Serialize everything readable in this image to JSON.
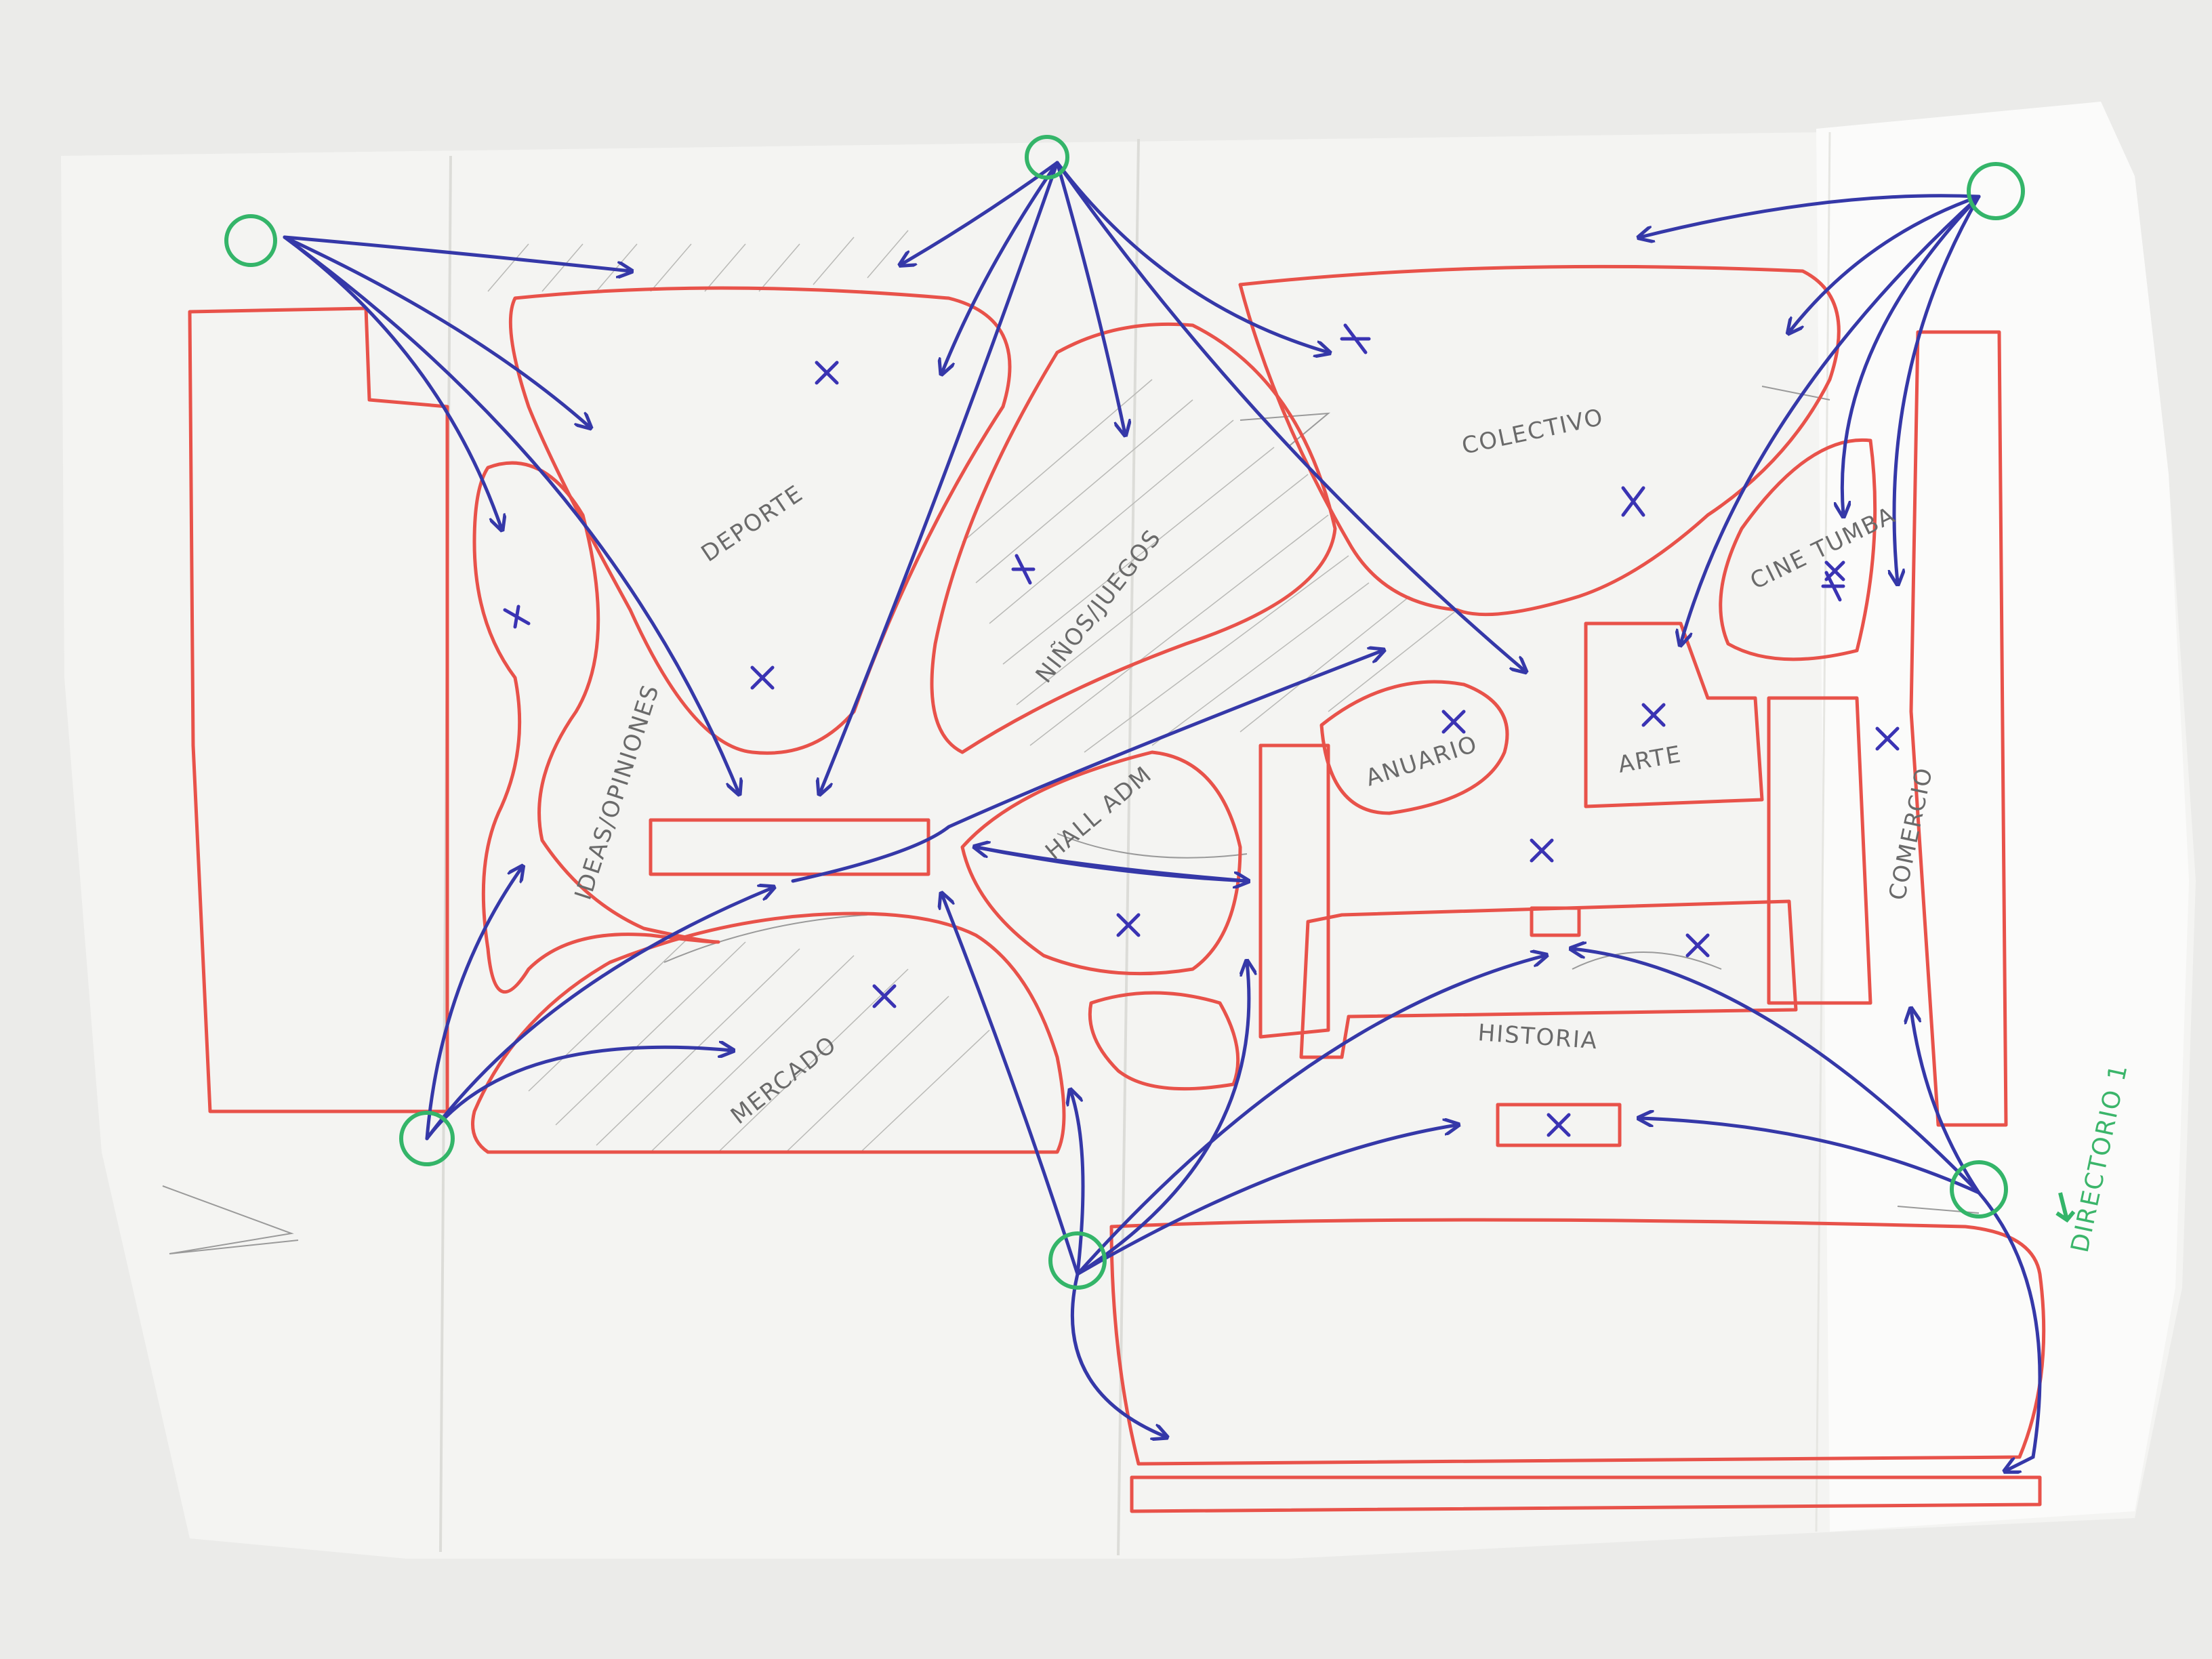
{
  "sketch": {
    "zones": [
      {
        "id": "deporte",
        "label": "DEPORTE"
      },
      {
        "id": "ninos",
        "label": "NIÑOS/JUEGOS"
      },
      {
        "id": "colectivo",
        "label": "COLECTIVO"
      },
      {
        "id": "cine",
        "label": "CINE TUMBA"
      },
      {
        "id": "ideas",
        "label": "IDEAS/OPINIONES"
      },
      {
        "id": "hall",
        "label": "HALL ADM"
      },
      {
        "id": "anuario",
        "label": "ANUARIO"
      },
      {
        "id": "arte",
        "label": "ARTE"
      },
      {
        "id": "comercio",
        "label": "COMERCIO"
      },
      {
        "id": "mercado",
        "label": "MERCADO"
      },
      {
        "id": "historia",
        "label": "HISTORIA"
      }
    ],
    "annotation": "DIRECTORIO 1",
    "colors": {
      "paper": "#f4f4f2",
      "zone_outline": "#e8524a",
      "circulation_arrows": "#3538a8",
      "access_points": "#34b569",
      "pencil": "#9a9a9a"
    }
  }
}
